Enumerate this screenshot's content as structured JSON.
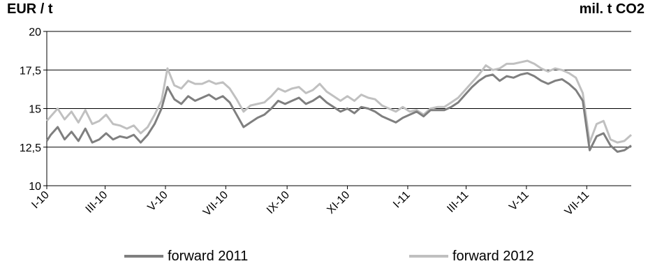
{
  "chart_data": {
    "type": "line",
    "title": "",
    "ylabel": "EUR / t",
    "ylabel_right": "mil. t CO2",
    "xlabel": "",
    "ylim": [
      10,
      20
    ],
    "yticks": [
      10,
      12.5,
      15,
      17.5,
      20
    ],
    "ytick_labels": [
      "10",
      "12,5",
      "15",
      "17,5",
      "20"
    ],
    "xlim": [
      "2010-01-01",
      "2011-08-15"
    ],
    "xtick_dates": [
      "2010-01-01",
      "2010-03-01",
      "2010-05-01",
      "2010-07-01",
      "2010-09-01",
      "2010-11-01",
      "2011-01-01",
      "2011-03-01",
      "2011-05-01",
      "2011-07-01"
    ],
    "xtick_labels": [
      "I-10",
      "III-10",
      "V-10",
      "VII-10",
      "IX-10",
      "XI-10",
      "I-11",
      "III-11",
      "V-11",
      "VII-11"
    ],
    "grid": "horizontal",
    "legend_position": "bottom",
    "series": [
      {
        "name": "forward 2011",
        "color": "#7f7f7f",
        "x": [
          "2010-01-01",
          "2010-01-05",
          "2010-01-12",
          "2010-01-19",
          "2010-01-26",
          "2010-02-02",
          "2010-02-09",
          "2010-02-16",
          "2010-02-23",
          "2010-03-02",
          "2010-03-09",
          "2010-03-16",
          "2010-03-23",
          "2010-03-30",
          "2010-04-06",
          "2010-04-13",
          "2010-04-20",
          "2010-04-27",
          "2010-05-03",
          "2010-05-10",
          "2010-05-17",
          "2010-05-24",
          "2010-05-31",
          "2010-06-07",
          "2010-06-14",
          "2010-06-21",
          "2010-06-28",
          "2010-07-05",
          "2010-07-12",
          "2010-07-19",
          "2010-07-26",
          "2010-08-02",
          "2010-08-09",
          "2010-08-16",
          "2010-08-23",
          "2010-08-30",
          "2010-09-06",
          "2010-09-13",
          "2010-09-20",
          "2010-09-27",
          "2010-10-04",
          "2010-10-11",
          "2010-10-18",
          "2010-10-25",
          "2010-11-01",
          "2010-11-08",
          "2010-11-15",
          "2010-11-22",
          "2010-11-29",
          "2010-12-06",
          "2010-12-13",
          "2010-12-20",
          "2010-12-27",
          "2011-01-03",
          "2011-01-10",
          "2011-01-17",
          "2011-01-24",
          "2011-01-31",
          "2011-02-07",
          "2011-02-14",
          "2011-02-21",
          "2011-02-28",
          "2011-03-07",
          "2011-03-14",
          "2011-03-21",
          "2011-03-28",
          "2011-04-04",
          "2011-04-11",
          "2011-04-18",
          "2011-04-25",
          "2011-05-02",
          "2011-05-09",
          "2011-05-16",
          "2011-05-23",
          "2011-05-30",
          "2011-06-06",
          "2011-06-13",
          "2011-06-20",
          "2011-06-27",
          "2011-07-04",
          "2011-07-11",
          "2011-07-18",
          "2011-07-25",
          "2011-08-01",
          "2011-08-08",
          "2011-08-15"
        ],
        "y": [
          12.9,
          13.3,
          13.8,
          13.0,
          13.5,
          12.9,
          13.7,
          12.8,
          13.0,
          13.4,
          13.0,
          13.2,
          13.1,
          13.3,
          12.8,
          13.3,
          14.0,
          15.0,
          16.4,
          15.6,
          15.3,
          15.8,
          15.5,
          15.7,
          15.9,
          15.6,
          15.8,
          15.4,
          14.6,
          13.8,
          14.1,
          14.4,
          14.6,
          15.0,
          15.5,
          15.3,
          15.5,
          15.7,
          15.3,
          15.5,
          15.8,
          15.4,
          15.1,
          14.8,
          15.0,
          14.7,
          15.1,
          15.0,
          14.8,
          14.5,
          14.3,
          14.1,
          14.4,
          14.6,
          14.8,
          14.5,
          14.9,
          14.9,
          14.9,
          15.1,
          15.4,
          15.9,
          16.4,
          16.8,
          17.1,
          17.2,
          16.8,
          17.1,
          17.0,
          17.2,
          17.3,
          17.1,
          16.8,
          16.6,
          16.8,
          16.9,
          16.6,
          16.2,
          15.5,
          12.3,
          13.2,
          13.4,
          12.6,
          12.2,
          12.3,
          12.6
        ]
      },
      {
        "name": "forward 2012",
        "color": "#c0c0c0",
        "x": [
          "2010-01-01",
          "2010-01-05",
          "2010-01-12",
          "2010-01-19",
          "2010-01-26",
          "2010-02-02",
          "2010-02-09",
          "2010-02-16",
          "2010-02-23",
          "2010-03-02",
          "2010-03-09",
          "2010-03-16",
          "2010-03-23",
          "2010-03-30",
          "2010-04-06",
          "2010-04-13",
          "2010-04-20",
          "2010-04-27",
          "2010-05-03",
          "2010-05-10",
          "2010-05-17",
          "2010-05-24",
          "2010-05-31",
          "2010-06-07",
          "2010-06-14",
          "2010-06-21",
          "2010-06-28",
          "2010-07-05",
          "2010-07-12",
          "2010-07-19",
          "2010-07-26",
          "2010-08-02",
          "2010-08-09",
          "2010-08-16",
          "2010-08-23",
          "2010-08-30",
          "2010-09-06",
          "2010-09-13",
          "2010-09-20",
          "2010-09-27",
          "2010-10-04",
          "2010-10-11",
          "2010-10-18",
          "2010-10-25",
          "2010-11-01",
          "2010-11-08",
          "2010-11-15",
          "2010-11-22",
          "2010-11-29",
          "2010-12-06",
          "2010-12-13",
          "2010-12-20",
          "2010-12-27",
          "2011-01-03",
          "2011-01-10",
          "2011-01-17",
          "2011-01-24",
          "2011-01-31",
          "2011-02-07",
          "2011-02-14",
          "2011-02-21",
          "2011-02-28",
          "2011-03-07",
          "2011-03-14",
          "2011-03-21",
          "2011-03-28",
          "2011-04-04",
          "2011-04-11",
          "2011-04-18",
          "2011-04-25",
          "2011-05-02",
          "2011-05-09",
          "2011-05-16",
          "2011-05-23",
          "2011-05-30",
          "2011-06-06",
          "2011-06-13",
          "2011-06-20",
          "2011-06-27",
          "2011-07-04",
          "2011-07-11",
          "2011-07-18",
          "2011-07-25",
          "2011-08-01",
          "2011-08-08",
          "2011-08-15"
        ],
        "y": [
          14.2,
          14.5,
          15.0,
          14.3,
          14.8,
          14.1,
          14.9,
          14.0,
          14.2,
          14.6,
          14.0,
          13.9,
          13.7,
          13.9,
          13.4,
          13.8,
          14.6,
          15.5,
          17.6,
          16.5,
          16.3,
          16.8,
          16.6,
          16.6,
          16.8,
          16.6,
          16.7,
          16.3,
          15.6,
          14.8,
          15.2,
          15.3,
          15.4,
          15.8,
          16.3,
          16.1,
          16.3,
          16.4,
          16.0,
          16.2,
          16.6,
          16.1,
          15.8,
          15.5,
          15.8,
          15.5,
          15.9,
          15.7,
          15.6,
          15.2,
          15.0,
          14.8,
          15.1,
          14.8,
          14.9,
          14.6,
          15.0,
          15.1,
          15.1,
          15.4,
          15.7,
          16.2,
          16.7,
          17.2,
          17.8,
          17.5,
          17.6,
          17.9,
          17.9,
          18.0,
          18.1,
          17.9,
          17.6,
          17.4,
          17.6,
          17.5,
          17.3,
          17.0,
          16.0,
          12.8,
          14.0,
          14.2,
          13.0,
          12.8,
          12.9,
          13.3
        ]
      }
    ]
  }
}
